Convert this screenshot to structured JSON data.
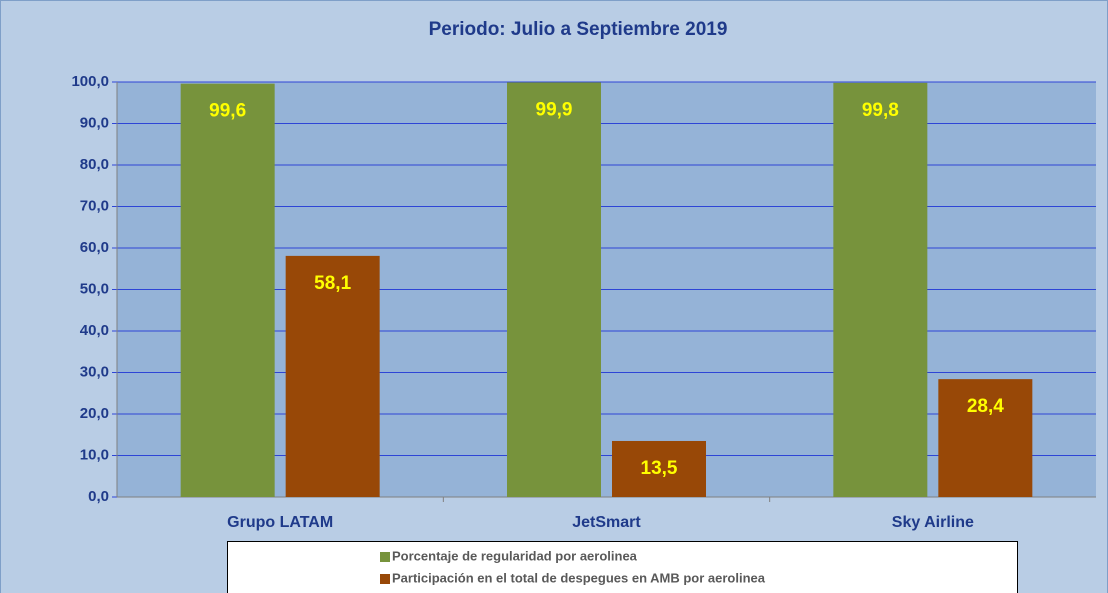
{
  "chart_data": {
    "type": "bar",
    "title": "Periodo: Julio  a  Septiembre   2019",
    "categories": [
      "Grupo LATAM",
      "JetSmart",
      "Sky Airline"
    ],
    "series": [
      {
        "name": "Porcentaje de regularidad por aerolinea",
        "color": "#77933c",
        "values": [
          99.6,
          99.9,
          99.8
        ],
        "value_labels": [
          "99,6",
          "99,9",
          "99,8"
        ]
      },
      {
        "name": "Participación en el total de despegues en AMB por aerolinea",
        "color": "#984807",
        "values": [
          58.1,
          13.5,
          28.4
        ],
        "value_labels": [
          "58,1",
          "13,5",
          "28,4"
        ]
      }
    ],
    "ylim": [
      0,
      100
    ],
    "yticks": [
      {
        "value": 0,
        "label": "0,0"
      },
      {
        "value": 10,
        "label": "10,0"
      },
      {
        "value": 20,
        "label": "20,0"
      },
      {
        "value": 30,
        "label": "30,0"
      },
      {
        "value": 40,
        "label": "40,0"
      },
      {
        "value": 50,
        "label": "50,0"
      },
      {
        "value": 60,
        "label": "60,0"
      },
      {
        "value": 70,
        "label": "70,0"
      },
      {
        "value": 80,
        "label": "80,0"
      },
      {
        "value": 90,
        "label": "90,0"
      },
      {
        "value": 100,
        "label": "100,0"
      }
    ],
    "grid": true,
    "legend": "bottom"
  }
}
